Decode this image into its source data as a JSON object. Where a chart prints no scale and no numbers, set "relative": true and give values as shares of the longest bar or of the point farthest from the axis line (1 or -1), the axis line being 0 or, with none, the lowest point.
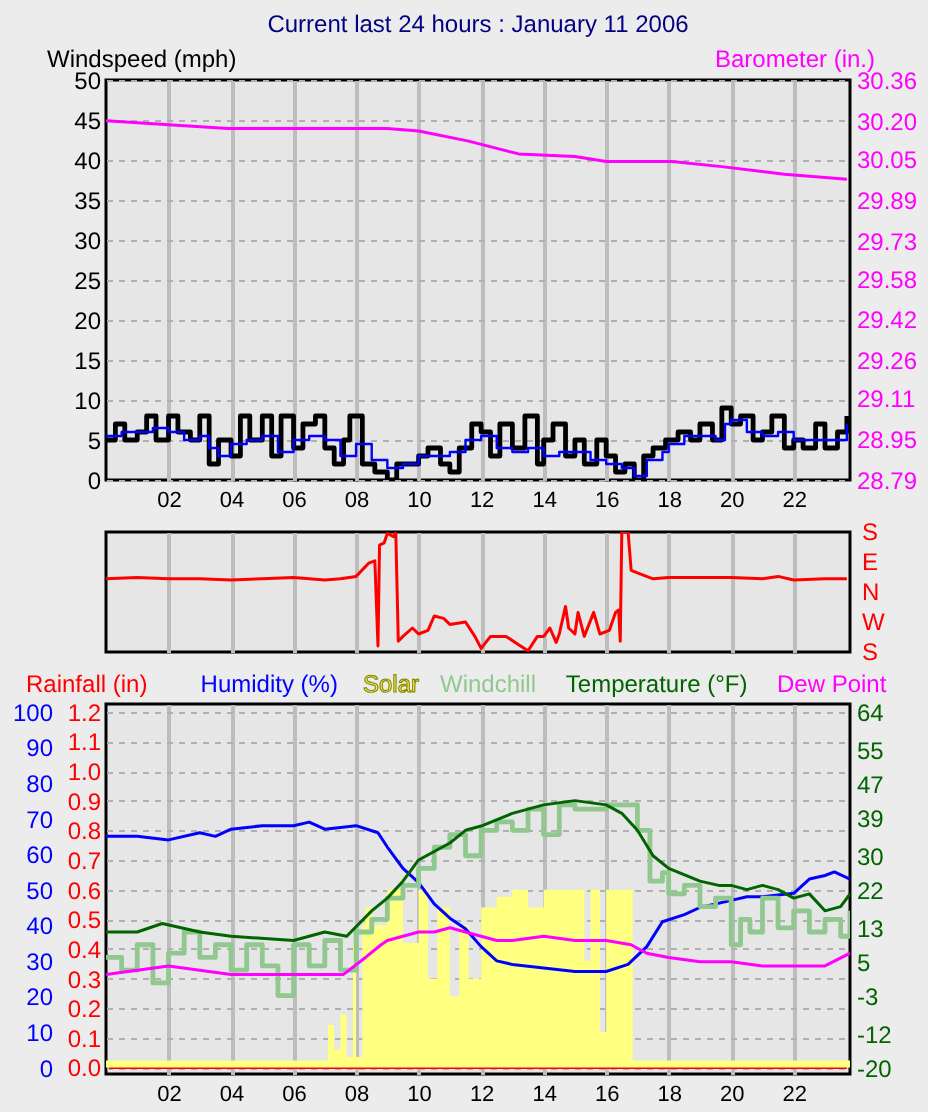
{
  "chart_data": [
    {
      "type": "line",
      "title": "Current last 24 hours : January 11 2006",
      "ylabel": "Windspeed (mph)",
      "y2label": "Barometer (in.)",
      "xlim": [
        0,
        23.8
      ],
      "xticks": [
        {
          "value": 2,
          "label": "02"
        },
        {
          "value": 4,
          "label": "04"
        },
        {
          "value": 6,
          "label": "06"
        },
        {
          "value": 8,
          "label": "08"
        },
        10,
        12,
        14,
        16,
        18,
        20,
        22
      ],
      "ylim": [
        0,
        50
      ],
      "yticks": [
        0,
        5,
        10,
        15,
        20,
        25,
        30,
        35,
        40,
        45,
        50
      ],
      "y2lim": [
        28.79,
        30.36
      ],
      "y2ticks": [
        28.79,
        28.95,
        29.11,
        29.26,
        29.42,
        29.58,
        29.73,
        29.89,
        30.05,
        {
          "value": 30.2,
          "label": "30.20"
        },
        30.36
      ],
      "grid": true,
      "series": [
        {
          "type": "step",
          "color": "#000000",
          "x": [
            0,
            0.3,
            0.6,
            1,
            1.3,
            1.6,
            2,
            2.3,
            2.7,
            3,
            3.3,
            3.6,
            4,
            4.3,
            4.6,
            5,
            5.3,
            5.6,
            6,
            6.3,
            6.7,
            7,
            7.3,
            7.6,
            7.8,
            8.2,
            8.6,
            9,
            9.3,
            9.7,
            10,
            10.3,
            10.7,
            11,
            11.3,
            11.7,
            12,
            12.3,
            12.6,
            13,
            13.4,
            13.8,
            14,
            14.3,
            14.7,
            15,
            15.3,
            15.7,
            16,
            16.3,
            16.6,
            16.9,
            17.2,
            17.5,
            17.9,
            18.3,
            18.7,
            19,
            19.4,
            19.7,
            20,
            20.3,
            20.7,
            21,
            21.3,
            21.7,
            22,
            22.3,
            22.7,
            23,
            23.4,
            23.7
          ],
          "values": [
            5,
            7,
            5,
            6,
            8,
            5,
            8,
            6,
            5,
            8,
            2,
            5,
            3,
            8,
            5,
            8,
            3,
            8,
            4,
            7,
            8,
            4,
            2,
            5,
            8,
            2,
            1,
            0,
            2,
            2,
            3,
            4,
            2,
            1,
            4,
            7,
            6,
            3,
            7,
            4,
            8,
            2,
            5,
            7,
            3,
            5,
            2,
            5,
            3,
            1,
            2,
            0,
            3,
            4,
            5,
            6,
            5,
            7,
            5,
            9,
            7,
            8,
            5,
            6,
            8,
            4,
            5,
            4,
            7,
            4,
            6,
            8
          ]
        },
        {
          "type": "step",
          "color": "#0000ff",
          "x": [
            0,
            0.5,
            1,
            1.5,
            2,
            2.5,
            3,
            3.3,
            3.6,
            4,
            4.5,
            5,
            5.5,
            6,
            6.5,
            7,
            7.5,
            8,
            8.5,
            9,
            9.5,
            10,
            10.5,
            11,
            11.5,
            12,
            12.5,
            13,
            13.5,
            14,
            14.5,
            15,
            15.5,
            16,
            16.5,
            16.9,
            17.3,
            17.8,
            18,
            18.5,
            19,
            19.5,
            19.8,
            20,
            20.5,
            21,
            21.5,
            22,
            22.5,
            23,
            23.5,
            23.7
          ],
          "values": [
            5.5,
            6,
            6,
            6.5,
            6,
            5,
            5.5,
            4,
            3,
            4.5,
            5,
            5.5,
            3.5,
            5,
            5.5,
            5,
            3,
            4.5,
            2.5,
            1.5,
            2,
            3,
            3,
            3.5,
            5,
            5.5,
            4,
            3.5,
            4,
            3,
            3.5,
            3.5,
            2.5,
            2,
            1.5,
            0.5,
            2.5,
            3.5,
            4.5,
            5.5,
            5.5,
            5,
            7,
            7.5,
            6,
            5.5,
            6,
            5,
            5,
            5,
            5,
            7
          ]
        },
        {
          "type": "line",
          "axis": "y2",
          "color": "#ff00ff",
          "x": [
            0,
            3.9,
            9,
            10,
            11.6,
            13.2,
            15,
            16,
            18.1,
            19.7,
            21.7,
            23.7
          ],
          "values": [
            30.2,
            30.17,
            30.17,
            30.16,
            30.12,
            30.07,
            30.06,
            30.04,
            30.04,
            30.02,
            29.99,
            29.97
          ]
        }
      ]
    },
    {
      "type": "line",
      "xlim": [
        0,
        23.8
      ],
      "xticks": [
        2,
        4,
        6,
        8,
        10,
        12,
        14,
        16,
        18,
        20,
        22
      ],
      "relative": true,
      "annotations": [
        "S",
        "E",
        "N",
        "W",
        "S"
      ],
      "tick_labels": "y",
      "grid": "x",
      "series": [
        {
          "color": "#ff0000",
          "x": [
            0,
            1,
            2,
            3,
            4,
            5,
            6,
            7,
            7.5,
            8,
            8.4,
            8.6,
            8.7,
            8.75,
            8.9,
            9,
            9.2,
            9.27,
            9.35,
            9.5,
            9.8,
            10,
            10.3,
            10.5,
            10.8,
            11,
            11.5,
            11.8,
            12,
            12.3,
            12.8,
            13.2,
            13.5,
            13.8,
            14,
            14.2,
            14.4,
            14.5,
            14.7,
            14.8,
            15,
            15.1,
            15.3,
            15.6,
            15.8,
            16.1,
            16.3,
            16.4,
            16.45,
            16.5,
            16.7,
            16.8,
            17,
            17.5,
            18,
            19,
            20,
            21,
            21.5,
            22,
            23,
            23.7
          ],
          "values": [
            0.61,
            0.62,
            0.61,
            0.61,
            0.6,
            0.61,
            0.62,
            0.6,
            0.61,
            0.63,
            0.74,
            0.76,
            0.05,
            0.89,
            0.91,
            0.99,
            0.96,
            1,
            0.09,
            0.13,
            0.2,
            0.15,
            0.18,
            0.3,
            0.28,
            0.23,
            0.25,
            0.13,
            0.03,
            0.13,
            0.13,
            0.06,
            0.01,
            0.13,
            0.13,
            0.2,
            0.08,
            0.15,
            0.38,
            0.2,
            0.15,
            0.33,
            0.13,
            0.33,
            0.15,
            0.18,
            0.33,
            0.35,
            0.09,
            1,
            1,
            0.68,
            0.66,
            0.61,
            0.62,
            0.62,
            0.62,
            0.61,
            0.63,
            0.6,
            0.61,
            0.61
          ]
        }
      ]
    },
    {
      "type": "line",
      "legend": "top",
      "xlim": [
        0,
        23.8
      ],
      "xticks": [
        {
          "value": 2,
          "label": "02"
        },
        {
          "value": 4,
          "label": "04"
        },
        {
          "value": 6,
          "label": "06"
        },
        {
          "value": 8,
          "label": "08"
        },
        10,
        12,
        14,
        16,
        18,
        20,
        22
      ],
      "ylim": [
        -1.8,
        102.2
      ],
      "yticks": [
        0,
        10,
        20,
        30,
        40,
        50,
        60,
        70,
        80,
        90,
        100
      ],
      "y2lim": [
        -0.022,
        1.226
      ],
      "y2ticks": [
        {
          "value": 0,
          "label": "0.0"
        },
        0.1,
        0.2,
        0.3,
        0.4,
        0.5,
        0.6,
        0.7,
        0.8,
        0.9,
        {
          "value": 1,
          "label": "1.0"
        },
        1.1,
        1.2
      ],
      "y3lim": [
        -21.5,
        65.8
      ],
      "y3ticks": [
        -20,
        -12,
        -3,
        5,
        13,
        22,
        30,
        39,
        47,
        55,
        64
      ],
      "grid": true,
      "series": [
        {
          "name": "Rainfall (in)",
          "axis": "y2",
          "color": "#ff0000",
          "x": [
            0.1,
            23.7
          ],
          "values": [
            0,
            0
          ]
        },
        {
          "name": "Humidity (%)",
          "color": "#0000ff",
          "x": [
            0,
            1,
            2,
            3,
            3.5,
            4,
            5,
            6,
            6.5,
            7,
            8,
            8.7,
            9,
            9.5,
            10,
            10.5,
            11,
            11.5,
            12,
            12.5,
            13,
            14,
            15,
            16,
            16.7,
            17.3,
            17.8,
            18.5,
            19,
            20,
            20.5,
            21,
            22,
            22.5,
            23,
            23.3,
            23.8
          ],
          "values": [
            65,
            65,
            64,
            66,
            65,
            67,
            68,
            68,
            69,
            67,
            68,
            66,
            62,
            56,
            52,
            46,
            42,
            39,
            34,
            30,
            29,
            28,
            27,
            27,
            29,
            34,
            41,
            43,
            45,
            47,
            48,
            48,
            49,
            53,
            54,
            55,
            53
          ]
        },
        {
          "name": "Solar",
          "type": "area",
          "color": "#ffff80",
          "x": [
            0,
            7,
            7.1,
            7.3,
            7.5,
            7.7,
            7.9,
            8,
            8.2,
            8.3,
            8.5,
            9,
            9.5,
            10,
            10.3,
            10.6,
            11,
            11.3,
            11.6,
            12,
            12.5,
            13,
            13.5,
            14,
            14.5,
            15,
            15.3,
            15.5,
            15.8,
            16,
            16.8,
            16.85,
            23.8
          ],
          "values": [
            2,
            2,
            12,
            5,
            15,
            3,
            35,
            3,
            40,
            45,
            40,
            50,
            35,
            50,
            25,
            45,
            20,
            40,
            25,
            45,
            48,
            50,
            45,
            50,
            50,
            50,
            30,
            50,
            10,
            50,
            50,
            2,
            2
          ]
        },
        {
          "name": "Windchill",
          "type": "step",
          "axis": "y3",
          "color": "#90c890",
          "x": [
            0,
            0.5,
            1,
            1.5,
            2,
            2.5,
            3,
            3.5,
            4,
            4.5,
            5,
            5.5,
            6,
            6.5,
            7,
            7.5,
            8,
            8.5,
            9,
            9.5,
            10,
            10.5,
            11,
            11.5,
            12,
            12.5,
            13,
            13.5,
            14,
            14.5,
            15,
            16,
            17,
            17.4,
            17.8,
            18,
            18.5,
            19,
            19.5,
            20,
            20.3,
            20.6,
            21,
            21.5,
            22,
            22.5,
            23,
            23.5,
            23.8
          ],
          "values": [
            6,
            3,
            9,
            0,
            7,
            12,
            6,
            9,
            3,
            9,
            4,
            -3,
            9,
            4,
            10,
            3,
            12,
            15,
            20,
            23,
            27,
            32,
            35,
            30,
            36,
            38,
            36,
            41,
            35,
            42,
            41,
            42,
            36,
            24,
            26,
            21,
            23,
            18,
            20,
            9,
            15,
            12,
            20,
            13,
            17,
            12,
            15,
            11,
            17
          ]
        },
        {
          "name": "Temperature (°F)",
          "axis": "y3",
          "color": "#006400",
          "x": [
            0,
            1,
            1.8,
            3,
            4,
            6,
            7,
            7.7,
            8.5,
            9,
            9.5,
            10,
            10.5,
            11,
            11.5,
            12,
            13,
            14,
            15,
            16,
            16.5,
            17,
            17.5,
            18,
            19,
            19.6,
            20,
            20.5,
            21,
            21.5,
            22,
            22.5,
            23,
            23.5,
            23.8
          ],
          "values": [
            12,
            12,
            14,
            12,
            11,
            10,
            12,
            11,
            17,
            20,
            24,
            29,
            31,
            33,
            36,
            37,
            40,
            42,
            43,
            42,
            40,
            36,
            30,
            27,
            24,
            23,
            23,
            22,
            23,
            22,
            20,
            21,
            17,
            18,
            21
          ]
        },
        {
          "name": "Dew Point",
          "axis": "y3",
          "color": "#ff00ff",
          "x": [
            0,
            1,
            2,
            3,
            4,
            5,
            6,
            7,
            7.6,
            8.3,
            8.8,
            9,
            9.5,
            10,
            10.5,
            11,
            11.5,
            12,
            12.5,
            13,
            14,
            15,
            16,
            16.8,
            17.3,
            18,
            19,
            20,
            21,
            22,
            23,
            23.8
          ],
          "values": [
            2,
            3,
            4,
            3,
            2,
            2,
            2,
            2,
            2,
            6,
            9,
            10,
            11,
            12,
            12,
            13,
            12,
            11,
            10,
            10,
            11,
            10,
            10,
            9,
            7,
            6,
            5,
            5,
            4,
            4,
            4,
            7
          ]
        }
      ]
    }
  ]
}
